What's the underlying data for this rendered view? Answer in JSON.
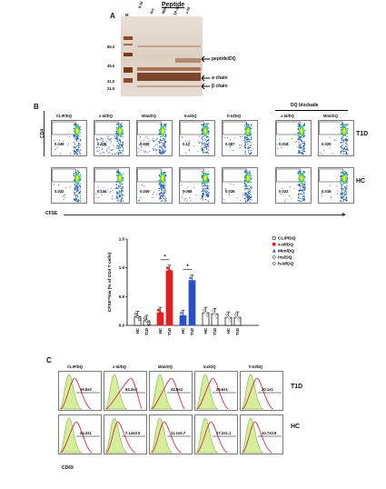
{
  "panelA": {
    "letter": "A",
    "header": "Peptide",
    "lanes": [
      "M",
      "h-Id",
      "Ins",
      "Mim",
      "TP-Id",
      "x-Id"
    ],
    "markers": [
      "66.2",
      "45.0",
      "31.0",
      "21.5"
    ],
    "annotations": [
      "peptide/DQ",
      "α chain",
      "β chain"
    ]
  },
  "panelB": {
    "letter": "B",
    "blockade_header": "DQ blockade",
    "columns": [
      "CLIP/DQ",
      "x-Id/DQ",
      "Mim/DQ",
      "Ins/DQ",
      "h-Id/DQ",
      "x-Id/DQ",
      "Mim/DQ"
    ],
    "rows": [
      {
        "label": "T1D",
        "values": [
          "0.049",
          "0.936",
          "0.608",
          "0.12",
          "0.087",
          "0.018",
          "0.020"
        ]
      },
      {
        "label": "HC",
        "values": [
          "0.032",
          "0.144",
          "0.046",
          "0.068",
          "0.036",
          "0.022",
          "0.016"
        ]
      }
    ],
    "y_axis": "CD4",
    "x_axis": "CFSE"
  },
  "chart_data": {
    "type": "bar",
    "ylabel": "CFSE^low (% of CD4 T cells)",
    "ylim": [
      0,
      1.5
    ],
    "yticks": [
      "0.0",
      "0.5",
      "1.0",
      "1.5"
    ],
    "groups": [
      {
        "name": "CLIP/DQ",
        "categories": [
          "HC",
          "T1D"
        ],
        "values": [
          0.15,
          0.08
        ],
        "color": "#ffffff",
        "marker": "circle-open"
      },
      {
        "name": "x-Id/DQ",
        "categories": [
          "HC",
          "T1D"
        ],
        "values": [
          0.22,
          0.95
        ],
        "color": "#e02020",
        "marker": "square"
      },
      {
        "name": "Mim/DQ",
        "categories": [
          "HC",
          "T1D"
        ],
        "values": [
          0.17,
          0.78
        ],
        "color": "#2a4fc8",
        "marker": "triangle"
      },
      {
        "name": "Ins/DQ",
        "categories": [
          "HC",
          "T1D"
        ],
        "values": [
          0.22,
          0.2
        ],
        "color": "#ffffff",
        "marker": "diamond-open"
      },
      {
        "name": "h-Id/DQ",
        "categories": [
          "HC",
          "T1D"
        ],
        "values": [
          0.14,
          0.14
        ],
        "color": "#ffffff",
        "marker": "diamond-cross"
      }
    ],
    "significance": [
      "*",
      "*"
    ],
    "legend": [
      "CLIP/DQ",
      "x-Id/DQ",
      "Mim/DQ",
      "Ins/DQ",
      "h-Id/DQ"
    ],
    "legend_position": "right"
  },
  "panelC": {
    "letter": "C",
    "columns": [
      "CLIP/DQ",
      "x-Id/DQ",
      "Mim/DQ",
      "Ins/DQ",
      "h-Id/DQ"
    ],
    "rows": [
      {
        "label": "T1D",
        "values": [
          "16.8±2",
          "64.3±2",
          "42.9±4",
          "25.6±1",
          "20.1±1"
        ]
      },
      {
        "label": "HC",
        "values": [
          "24.2±1",
          "7.14±0.5",
          "11.1±0.7",
          "17.2±1.1",
          "10.7±0.8"
        ]
      }
    ],
    "x_axis": "CD69"
  }
}
